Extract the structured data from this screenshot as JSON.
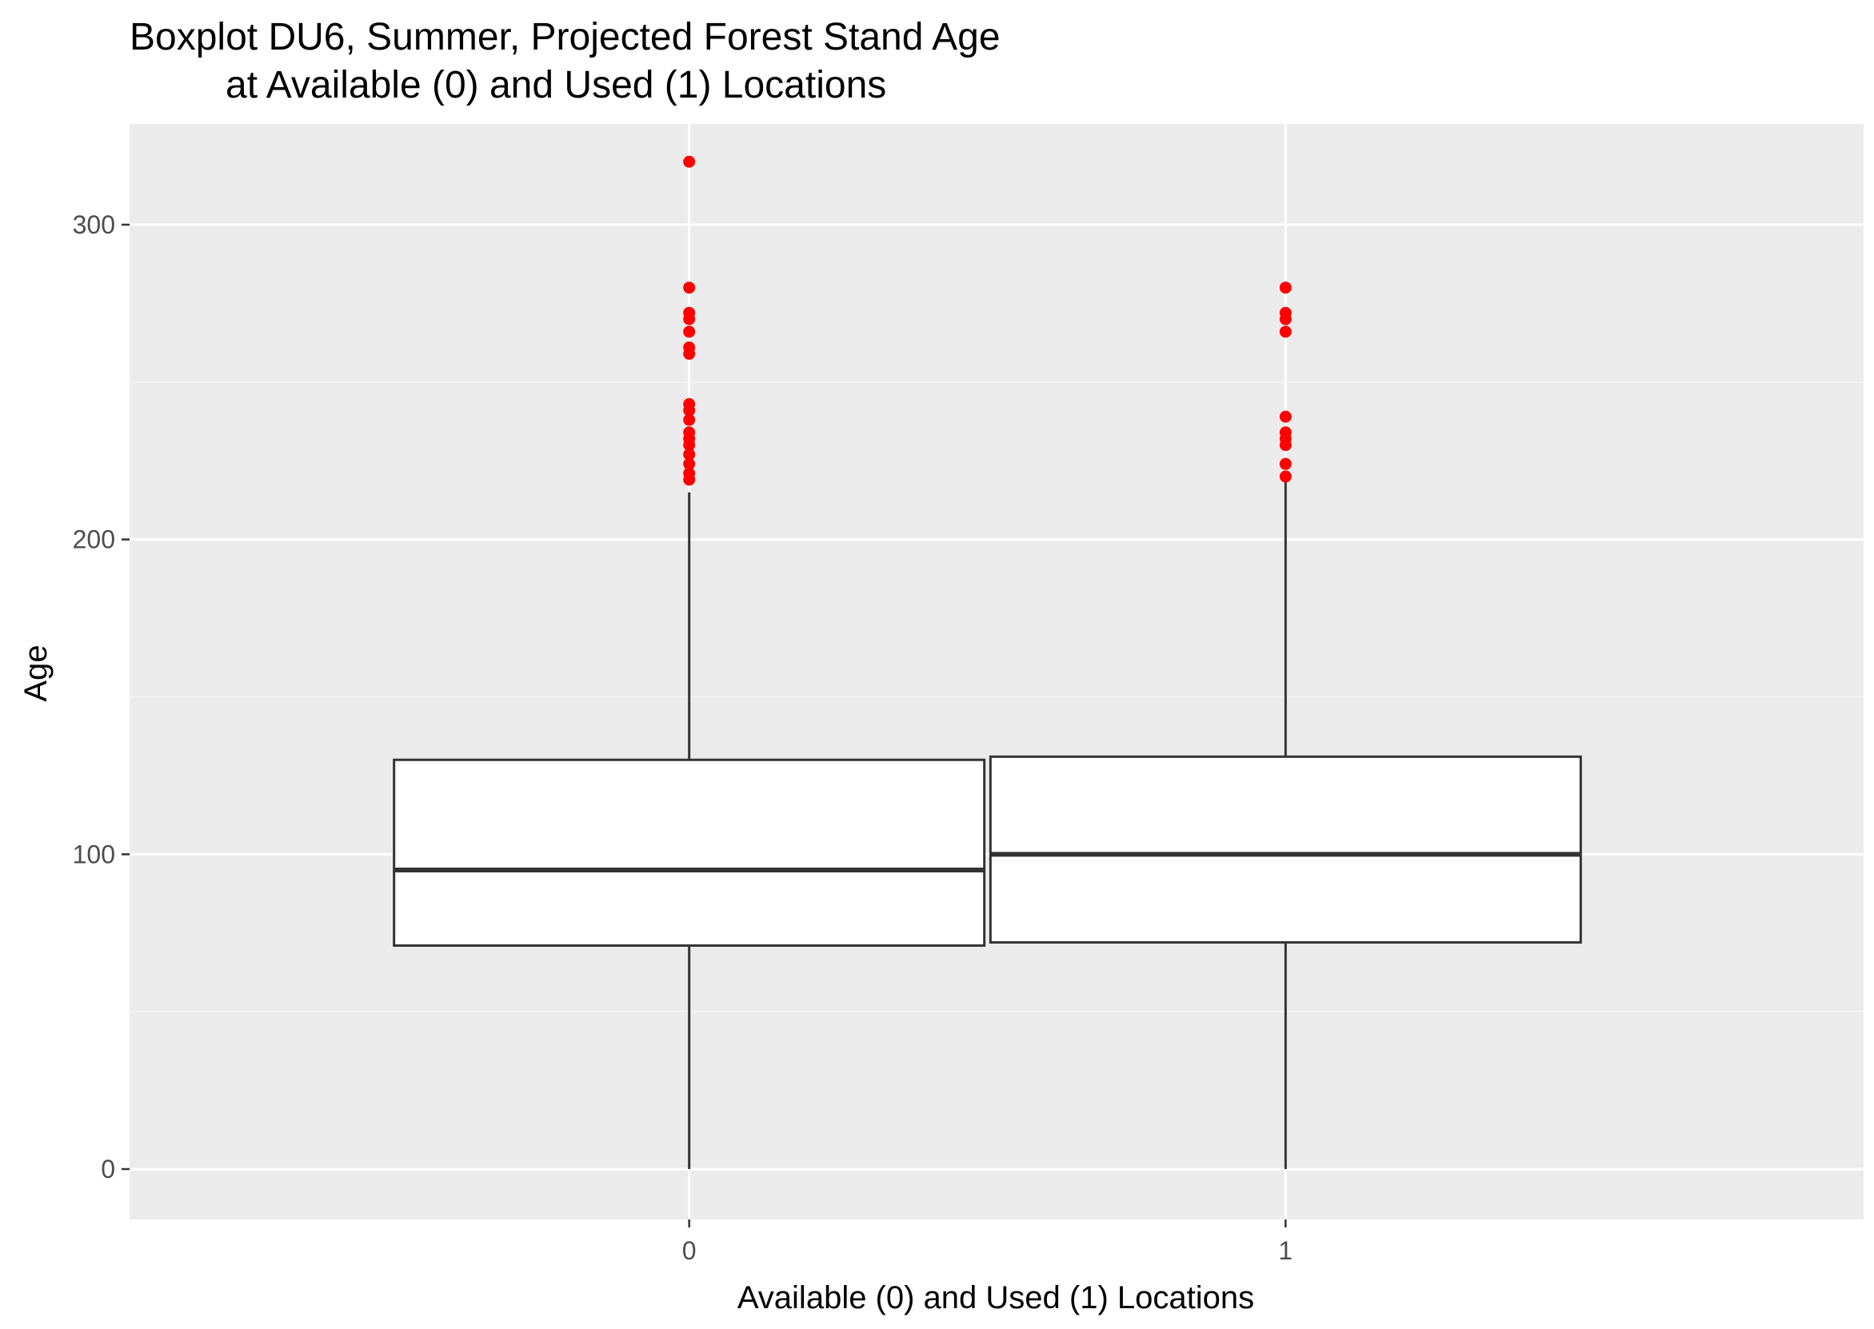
{
  "chart_data": {
    "type": "boxplot",
    "title_lines": [
      "Boxplot DU6, Summer, Projected Forest Stand Age",
      "at Available (0) and Used (1) Locations"
    ],
    "xlabel": "Available (0) and Used (1) Locations",
    "ylabel": "Age",
    "categories": [
      "0",
      "1"
    ],
    "ylim": [
      -16,
      332
    ],
    "yticks": [
      0,
      100,
      200,
      300
    ],
    "ytick_labels": [
      "0",
      "100",
      "200",
      "300"
    ],
    "grid": true,
    "legend": "none",
    "boxes": [
      {
        "category": "0",
        "whisker_low": 0,
        "q1": 71,
        "median": 95,
        "q3": 130,
        "whisker_high": 215,
        "outliers": [
          320,
          280,
          272,
          270,
          266,
          261,
          259,
          243,
          241,
          238,
          234,
          232,
          230,
          227,
          224,
          221,
          219
        ]
      },
      {
        "category": "1",
        "whisker_low": 0,
        "q1": 72,
        "median": 100,
        "q3": 131,
        "whisker_high": 219,
        "outliers": [
          280,
          272,
          270,
          266,
          239,
          234,
          232,
          230,
          224,
          220
        ]
      }
    ],
    "colors": {
      "panel_background": "#ebebeb",
      "grid_major": "#ffffff",
      "grid_minor": "#f5f5f5",
      "box_fill": "#ffffff",
      "box_line": "#333333",
      "outlier": "#ff0000",
      "tick": "#333333"
    }
  }
}
